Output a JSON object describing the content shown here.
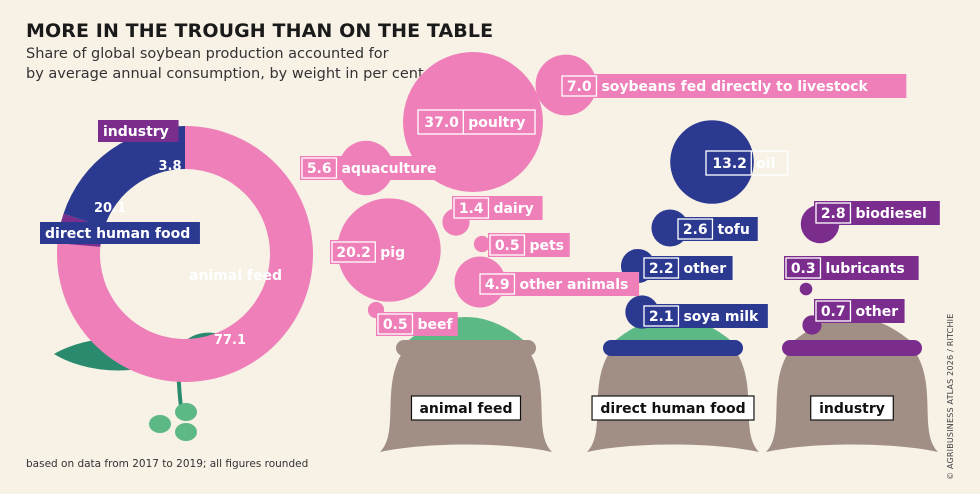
{
  "title": "MORE IN THE TROUGH THAN ON THE TABLE",
  "subtitle_line1": "Share of global soybean production accounted for",
  "subtitle_line2": "by average annual consumption, by weight in per cent",
  "footnote": "based on data from 2017 to 2019; all figures rounded",
  "credit": "© AGRIBUSINESS ATLAS 2026 / RITCHIE",
  "colors": {
    "animal_feed": "#ee7fb8",
    "direct_human_food": "#2b3990",
    "industry": "#7b2d8e",
    "sack": "#a18f86",
    "feed_heap": "#5cb884",
    "leaf": "#2a8a6e",
    "bean": "#5cb884",
    "background": "#f7f1e6"
  },
  "chart_data": [
    {
      "type": "pie",
      "name": "donut",
      "slices": [
        {
          "key": "feed",
          "label": "animal feed",
          "value": 77.1,
          "color": "#ee7fb8"
        },
        {
          "key": "industry",
          "label": "industry",
          "value": 3.8,
          "color": "#7b2d8e"
        },
        {
          "key": "food",
          "label": "direct human food",
          "value": 20.1,
          "color": "#2b3990"
        }
      ]
    },
    {
      "type": "bubble",
      "name": "bubbles",
      "groups": [
        {
          "key": "feed",
          "label": "animal feed",
          "color": "#ee7fb8",
          "items": [
            {
              "label": "soybeans fed directly to livestock",
              "value": 7.0
            },
            {
              "label": "poultry",
              "value": 37.0
            },
            {
              "label": "aquaculture",
              "value": 5.6
            },
            {
              "label": "dairy",
              "value": 1.4
            },
            {
              "label": "pig",
              "value": 20.2
            },
            {
              "label": "pets",
              "value": 0.5
            },
            {
              "label": "other animals",
              "value": 4.9
            },
            {
              "label": "beef",
              "value": 0.5
            }
          ]
        },
        {
          "key": "food",
          "label": "direct human food",
          "color": "#2b3990",
          "items": [
            {
              "label": "oil",
              "value": 13.2
            },
            {
              "label": "tofu",
              "value": 2.6
            },
            {
              "label": "other",
              "value": 2.2
            },
            {
              "label": "soya milk",
              "value": 2.1
            }
          ]
        },
        {
          "key": "industry",
          "label": "industry",
          "color": "#7b2d8e",
          "items": [
            {
              "label": "biodiesel",
              "value": 2.8
            },
            {
              "label": "lubricants",
              "value": 0.3
            },
            {
              "label": "other",
              "value": 0.7
            }
          ]
        }
      ]
    }
  ]
}
